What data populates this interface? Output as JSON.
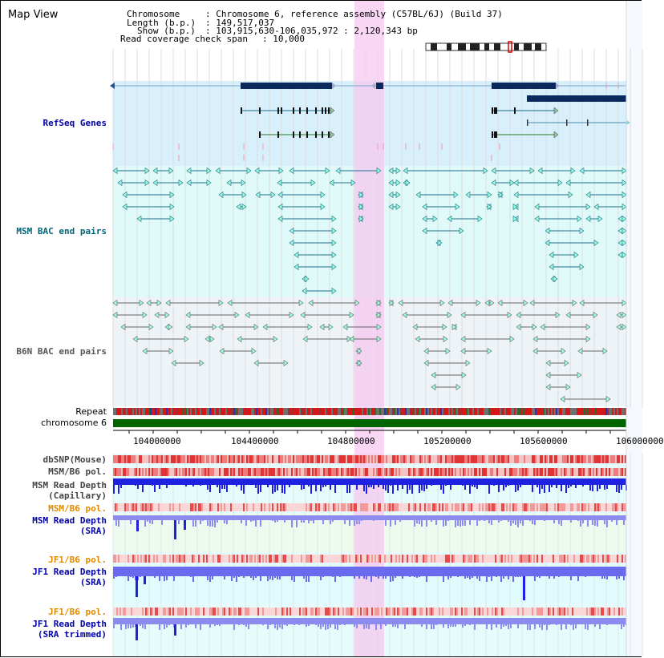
{
  "page": {
    "title": "Map View"
  },
  "header": {
    "chromosome_label": "Chromosome",
    "chromosome_value": ": Chromosome 6, reference assembly (C57BL/6J) (Build 37)",
    "length_label": "Length (b.p.)",
    "length_value": ": 149,517,037",
    "show_label": "Show (b.p.)",
    "show_value": ": 103,915,630-106,035,972 : 2,120,343 bp",
    "coverage_label": "Read coverage check span",
    "coverage_value": ": 10,000"
  },
  "tracks": {
    "refseq_genes": {
      "label": "RefSeq Genes",
      "color": "#0000aa"
    },
    "msm_bac": {
      "label": "MSM BAC end pairs",
      "color": "#006677"
    },
    "b6n_bac": {
      "label": "B6N BAC end pairs",
      "color": "#555555"
    },
    "repeat": {
      "label": "Repeat",
      "color": "#000000"
    },
    "chromosome": {
      "label": "chromosome 6",
      "color": "#000000"
    },
    "dbsnp": {
      "label": "dbSNP(Mouse)",
      "color": "#444444"
    },
    "msm_b6_pol_1": {
      "label": "MSM/B6 pol.",
      "color": "#444444"
    },
    "msm_read_depth_cap": {
      "label_line1": "MSM Read Depth",
      "label_line2": "(Capillary)",
      "color": "#444444"
    },
    "msm_b6_pol_2": {
      "label": "MSM/B6 pol.",
      "color": "#e08a00"
    },
    "msm_read_depth_sra": {
      "label_line1": "MSM Read Depth",
      "label_line2": "(SRA)",
      "color": "#0000aa"
    },
    "jf1_b6_pol_1": {
      "label": "JF1/B6 pol.",
      "color": "#e08a00"
    },
    "jf1_read_depth_sra": {
      "label_line1": "JF1 Read Depth",
      "label_line2": "(SRA)",
      "color": "#0000aa"
    },
    "jf1_b6_pol_2": {
      "label": "JF1/B6 pol.",
      "color": "#e08a00"
    },
    "jf1_read_depth_trim": {
      "label_line1": "JF1 Read Depth",
      "label_line2": "(SRA trimmed)",
      "color": "#0000aa"
    }
  },
  "axis": {
    "ticks": [
      "104000000",
      "104400000",
      "104800000",
      "105200000",
      "105600000",
      "106000000"
    ]
  },
  "colors": {
    "refseq_bg": "#d8f0fb",
    "msm_bg": "#e0fafa",
    "b6n_bg": "#eef3f8",
    "highlight": "#f6c8f0",
    "chromosome": "#006400",
    "gene": "#0a2a5e",
    "read_depth_dark": "#2020e0",
    "read_depth_light": "#8c8cf0"
  },
  "ideogram": {
    "icon": "chromosome-ideogram-icon"
  }
}
